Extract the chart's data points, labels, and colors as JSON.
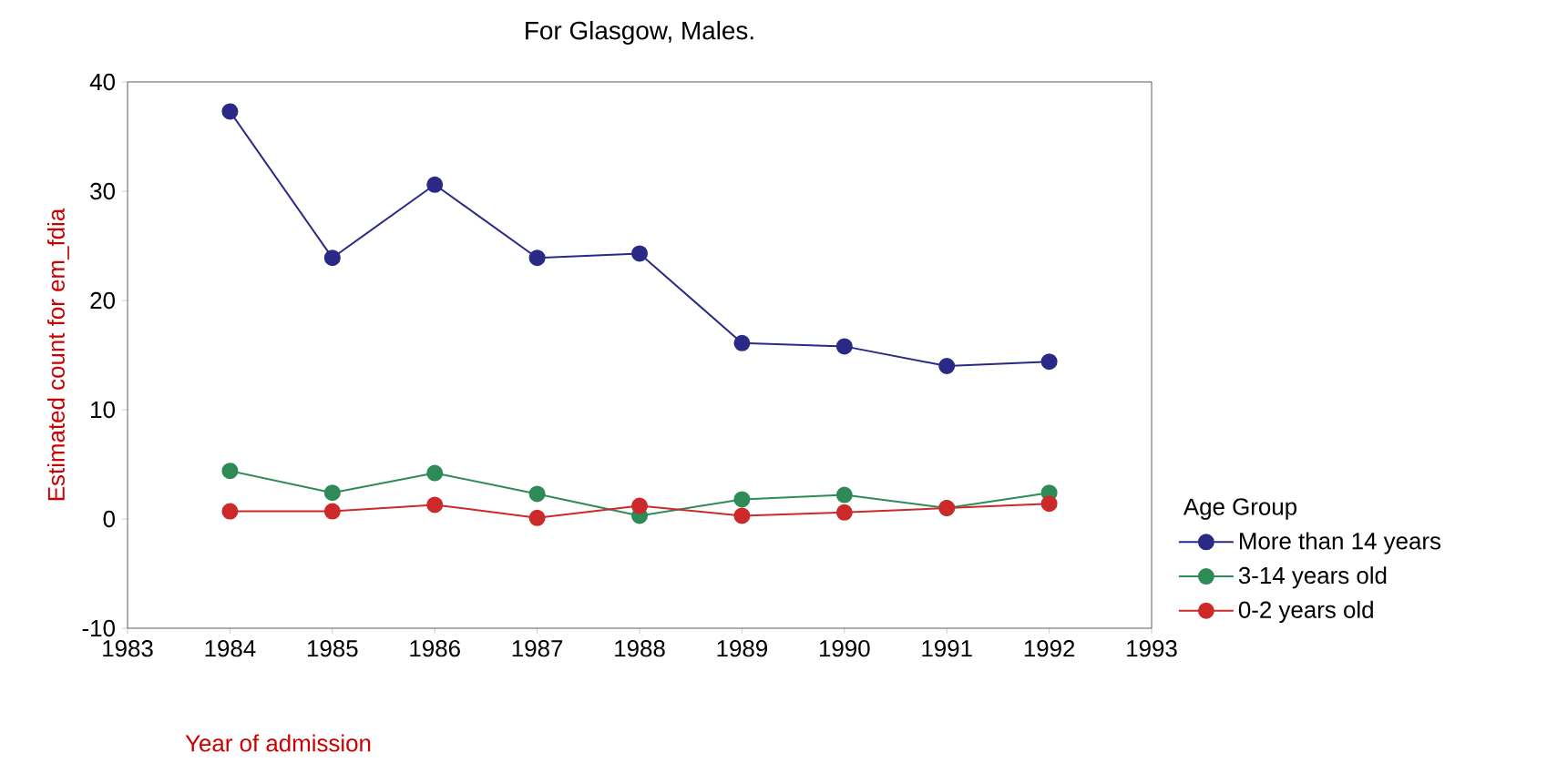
{
  "chart_data": {
    "type": "line",
    "title": "For Glasgow, Males.",
    "xlabel": "Year of admission",
    "ylabel": "Estimated count for em_fdia",
    "legend_title": "Age Group",
    "x": [
      1984,
      1985,
      1986,
      1987,
      1988,
      1989,
      1990,
      1991,
      1992
    ],
    "series": [
      {
        "name": "More than 14 years",
        "color": "#2a2a86",
        "values": [
          37.3,
          23.9,
          30.6,
          23.9,
          24.3,
          16.1,
          15.8,
          14.0,
          14.4
        ]
      },
      {
        "name": "3-14 years old",
        "color": "#2e8b57",
        "values": [
          4.4,
          2.4,
          4.2,
          2.3,
          0.3,
          1.8,
          2.2,
          1.0,
          2.4
        ]
      },
      {
        "name": "0-2 years old",
        "color": "#cc2a2a",
        "values": [
          0.7,
          0.7,
          1.3,
          0.1,
          1.2,
          0.3,
          0.6,
          1.0,
          1.4
        ]
      }
    ],
    "xlim": [
      1983,
      1993
    ],
    "xticks": [
      1983,
      1984,
      1985,
      1986,
      1987,
      1988,
      1989,
      1990,
      1991,
      1992,
      1993
    ],
    "ylim": [
      -10,
      40
    ],
    "yticks": [
      -10,
      0,
      10,
      20,
      30,
      40
    ],
    "grid": false,
    "legend": "right",
    "marker": "circle",
    "line_style": "solid"
  }
}
